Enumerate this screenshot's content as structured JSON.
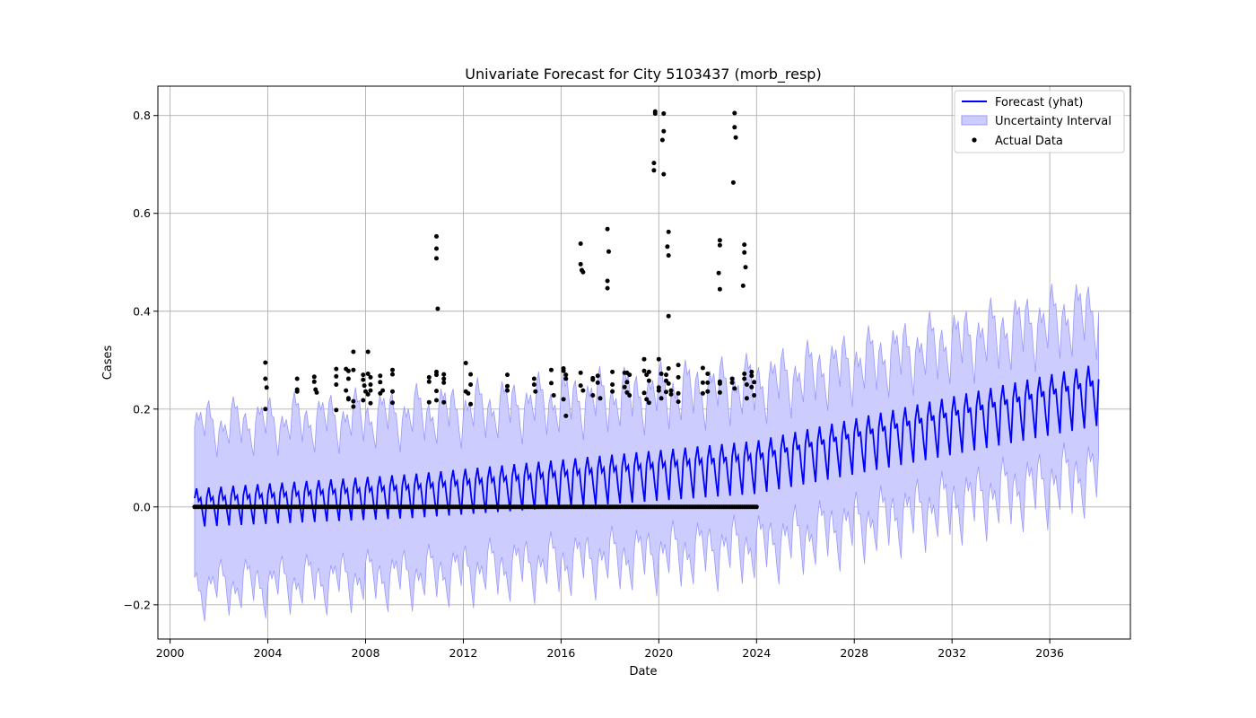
{
  "chart_data": {
    "type": "line",
    "title": "Univariate Forecast for City 5103437 (morb_resp)",
    "xlabel": "Date",
    "ylabel": "Cases",
    "xlim": [
      1999.5,
      2039.3
    ],
    "ylim": [
      -0.27,
      0.86
    ],
    "x_ticks": [
      "2000",
      "2004",
      "2008",
      "2012",
      "2016",
      "2020",
      "2024",
      "2028",
      "2032",
      "2036"
    ],
    "y_ticks": [
      "−0.2",
      "0.0",
      "0.2",
      "0.4",
      "0.6",
      "0.8"
    ],
    "grid": true,
    "legend_position": "top-right",
    "colors": {
      "forecast": "#0000ff",
      "interval": "#7b7bff",
      "actual": "#000000",
      "grid": "#b0b0b0"
    },
    "series": [
      {
        "name": "Forecast (yhat)",
        "kind": "line",
        "x_start": "2001-01",
        "x_end": "2037-12",
        "frequency": "monthly",
        "trend": [
          [
            2001.0,
            0.005
          ],
          [
            2010.0,
            0.03
          ],
          [
            2024.0,
            0.09
          ],
          [
            2038.0,
            0.24
          ]
        ],
        "seasonal_amplitude": 0.05,
        "note_peaks_per_year": 1
      },
      {
        "name": "Uncertainty Interval",
        "kind": "band",
        "lower_offset": -0.17,
        "upper_offset": 0.16
      },
      {
        "name": "Actual Data",
        "kind": "scatter",
        "zero_points_range": [
          2001.0,
          2024.0
        ],
        "points": [
          [
            2003.9,
            0.295
          ],
          [
            2003.9,
            0.262
          ],
          [
            2003.95,
            0.244
          ],
          [
            2003.9,
            0.2
          ],
          [
            2005.2,
            0.262
          ],
          [
            2005.2,
            0.24
          ],
          [
            2005.2,
            0.236
          ],
          [
            2005.9,
            0.266
          ],
          [
            2005.9,
            0.256
          ],
          [
            2005.95,
            0.24
          ],
          [
            2006.0,
            0.234
          ],
          [
            2006.8,
            0.282
          ],
          [
            2006.8,
            0.267
          ],
          [
            2006.8,
            0.25
          ],
          [
            2006.8,
            0.198
          ],
          [
            2007.2,
            0.282
          ],
          [
            2007.3,
            0.278
          ],
          [
            2007.3,
            0.262
          ],
          [
            2007.2,
            0.238
          ],
          [
            2007.3,
            0.222
          ],
          [
            2007.3,
            0.22
          ],
          [
            2007.5,
            0.317
          ],
          [
            2007.5,
            0.28
          ],
          [
            2007.5,
            0.216
          ],
          [
            2007.5,
            0.205
          ],
          [
            2007.9,
            0.27
          ],
          [
            2007.9,
            0.26
          ],
          [
            2007.95,
            0.248
          ],
          [
            2008.0,
            0.236
          ],
          [
            2007.9,
            0.218
          ],
          [
            2008.1,
            0.317
          ],
          [
            2008.1,
            0.272
          ],
          [
            2008.2,
            0.265
          ],
          [
            2008.2,
            0.25
          ],
          [
            2008.2,
            0.238
          ],
          [
            2008.1,
            0.23
          ],
          [
            2008.2,
            0.212
          ],
          [
            2008.6,
            0.268
          ],
          [
            2008.6,
            0.255
          ],
          [
            2008.7,
            0.238
          ],
          [
            2008.6,
            0.232
          ],
          [
            2009.1,
            0.28
          ],
          [
            2009.1,
            0.271
          ],
          [
            2009.1,
            0.236
          ],
          [
            2009.1,
            0.213
          ],
          [
            2010.6,
            0.265
          ],
          [
            2010.6,
            0.256
          ],
          [
            2010.6,
            0.214
          ],
          [
            2010.9,
            0.553
          ],
          [
            2010.9,
            0.528
          ],
          [
            2010.9,
            0.508
          ],
          [
            2010.95,
            0.405
          ],
          [
            2010.9,
            0.276
          ],
          [
            2010.9,
            0.27
          ],
          [
            2010.9,
            0.237
          ],
          [
            2010.9,
            0.218
          ],
          [
            2011.2,
            0.271
          ],
          [
            2011.2,
            0.262
          ],
          [
            2011.2,
            0.254
          ],
          [
            2011.2,
            0.214
          ],
          [
            2012.1,
            0.294
          ],
          [
            2012.1,
            0.236
          ],
          [
            2012.2,
            0.232
          ],
          [
            2012.3,
            0.271
          ],
          [
            2012.3,
            0.25
          ],
          [
            2012.3,
            0.21
          ],
          [
            2013.8,
            0.27
          ],
          [
            2013.8,
            0.247
          ],
          [
            2013.8,
            0.238
          ],
          [
            2014.9,
            0.262
          ],
          [
            2014.9,
            0.25
          ],
          [
            2014.95,
            0.236
          ],
          [
            2015.6,
            0.28
          ],
          [
            2015.6,
            0.253
          ],
          [
            2015.7,
            0.228
          ],
          [
            2016.1,
            0.283
          ],
          [
            2016.1,
            0.278
          ],
          [
            2016.2,
            0.27
          ],
          [
            2016.2,
            0.262
          ],
          [
            2016.1,
            0.22
          ],
          [
            2016.2,
            0.186
          ],
          [
            2016.8,
            0.538
          ],
          [
            2016.8,
            0.496
          ],
          [
            2016.85,
            0.484
          ],
          [
            2016.9,
            0.48
          ],
          [
            2016.8,
            0.274
          ],
          [
            2016.8,
            0.248
          ],
          [
            2016.9,
            0.238
          ],
          [
            2017.3,
            0.263
          ],
          [
            2017.3,
            0.26
          ],
          [
            2017.3,
            0.228
          ],
          [
            2017.5,
            0.268
          ],
          [
            2017.5,
            0.254
          ],
          [
            2017.6,
            0.222
          ],
          [
            2017.9,
            0.568
          ],
          [
            2017.95,
            0.522
          ],
          [
            2017.9,
            0.462
          ],
          [
            2017.9,
            0.447
          ],
          [
            2018.1,
            0.276
          ],
          [
            2018.1,
            0.25
          ],
          [
            2018.1,
            0.236
          ],
          [
            2018.6,
            0.274
          ],
          [
            2018.6,
            0.245
          ],
          [
            2018.7,
            0.274
          ],
          [
            2018.7,
            0.255
          ],
          [
            2018.7,
            0.234
          ],
          [
            2018.8,
            0.27
          ],
          [
            2018.8,
            0.228
          ],
          [
            2019.4,
            0.302
          ],
          [
            2019.4,
            0.278
          ],
          [
            2019.5,
            0.27
          ],
          [
            2019.4,
            0.233
          ],
          [
            2019.5,
            0.22
          ],
          [
            2019.6,
            0.276
          ],
          [
            2019.6,
            0.258
          ],
          [
            2019.6,
            0.213
          ],
          [
            2019.85,
            0.808
          ],
          [
            2019.85,
            0.804
          ],
          [
            2019.8,
            0.703
          ],
          [
            2019.8,
            0.688
          ],
          [
            2020.0,
            0.302
          ],
          [
            2020.0,
            0.244
          ],
          [
            2020.0,
            0.238
          ],
          [
            2020.1,
            0.272
          ],
          [
            2020.1,
            0.222
          ],
          [
            2020.2,
            0.804
          ],
          [
            2020.2,
            0.768
          ],
          [
            2020.15,
            0.75
          ],
          [
            2020.2,
            0.68
          ],
          [
            2020.3,
            0.27
          ],
          [
            2020.3,
            0.258
          ],
          [
            2020.3,
            0.235
          ],
          [
            2020.4,
            0.562
          ],
          [
            2020.35,
            0.532
          ],
          [
            2020.4,
            0.514
          ],
          [
            2020.4,
            0.39
          ],
          [
            2020.4,
            0.283
          ],
          [
            2020.4,
            0.252
          ],
          [
            2020.5,
            0.238
          ],
          [
            2020.5,
            0.23
          ],
          [
            2020.8,
            0.29
          ],
          [
            2020.8,
            0.265
          ],
          [
            2020.8,
            0.232
          ],
          [
            2020.8,
            0.215
          ],
          [
            2021.8,
            0.284
          ],
          [
            2021.8,
            0.254
          ],
          [
            2021.8,
            0.232
          ],
          [
            2022.0,
            0.272
          ],
          [
            2022.0,
            0.254
          ],
          [
            2022.0,
            0.236
          ],
          [
            2022.5,
            0.545
          ],
          [
            2022.5,
            0.535
          ],
          [
            2022.45,
            0.478
          ],
          [
            2022.5,
            0.445
          ],
          [
            2022.5,
            0.256
          ],
          [
            2022.5,
            0.252
          ],
          [
            2022.5,
            0.234
          ],
          [
            2023.1,
            0.805
          ],
          [
            2023.1,
            0.776
          ],
          [
            2023.15,
            0.755
          ],
          [
            2023.05,
            0.663
          ],
          [
            2023.0,
            0.262
          ],
          [
            2023.0,
            0.254
          ],
          [
            2023.1,
            0.242
          ],
          [
            2023.5,
            0.536
          ],
          [
            2023.5,
            0.52
          ],
          [
            2023.55,
            0.49
          ],
          [
            2023.45,
            0.452
          ],
          [
            2023.5,
            0.272
          ],
          [
            2023.5,
            0.262
          ],
          [
            2023.6,
            0.25
          ],
          [
            2023.6,
            0.222
          ],
          [
            2023.8,
            0.276
          ],
          [
            2023.8,
            0.268
          ],
          [
            2023.9,
            0.255
          ],
          [
            2023.8,
            0.245
          ],
          [
            2023.9,
            0.228
          ]
        ]
      }
    ]
  }
}
